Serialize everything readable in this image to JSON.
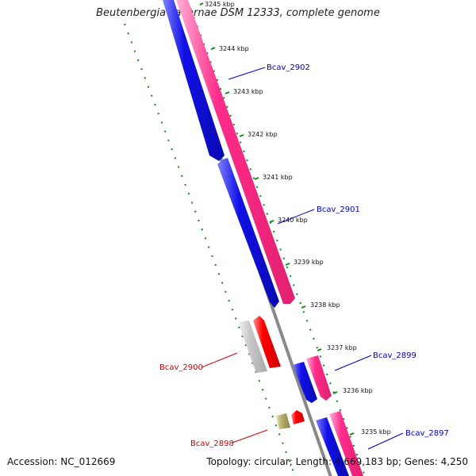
{
  "title": "Beutenbergia cavernae DSM 12333, complete genome",
  "footer": {
    "accession": "Accession: NC_012669",
    "summary": "Topology: circular; Length: 4,669,183 bp; Genes: 4,250"
  },
  "colors": {
    "forward_cds": "#ff2d8a",
    "reverse_cds": "#1010e6",
    "gene_label_blue": "#0000bb",
    "gene_label_red": "#cc0000",
    "backbone": "#888888",
    "tick_marks": "#118811",
    "red_feature": "#ff0000",
    "grey_feature": "#c8c8c8",
    "olive_feature": "#b8ae6e"
  },
  "ticks": [
    "3245 kbp",
    "3244 kbp",
    "3243 kbp",
    "3242 kbp",
    "3241 kbp",
    "3240 kbp",
    "3239 kbp",
    "3238 kbp",
    "3237 kbp",
    "3236 kbp",
    "3235 kbp"
  ],
  "gene_labels": [
    {
      "name": "Bcav_2902",
      "color": "blue"
    },
    {
      "name": "Bcav_2901",
      "color": "blue"
    },
    {
      "name": "Bcav_2899",
      "color": "blue"
    },
    {
      "name": "Bcav_2900",
      "color": "red"
    },
    {
      "name": "Bcav_2897",
      "color": "blue"
    },
    {
      "name": "Bcav_2898",
      "color": "red"
    }
  ]
}
